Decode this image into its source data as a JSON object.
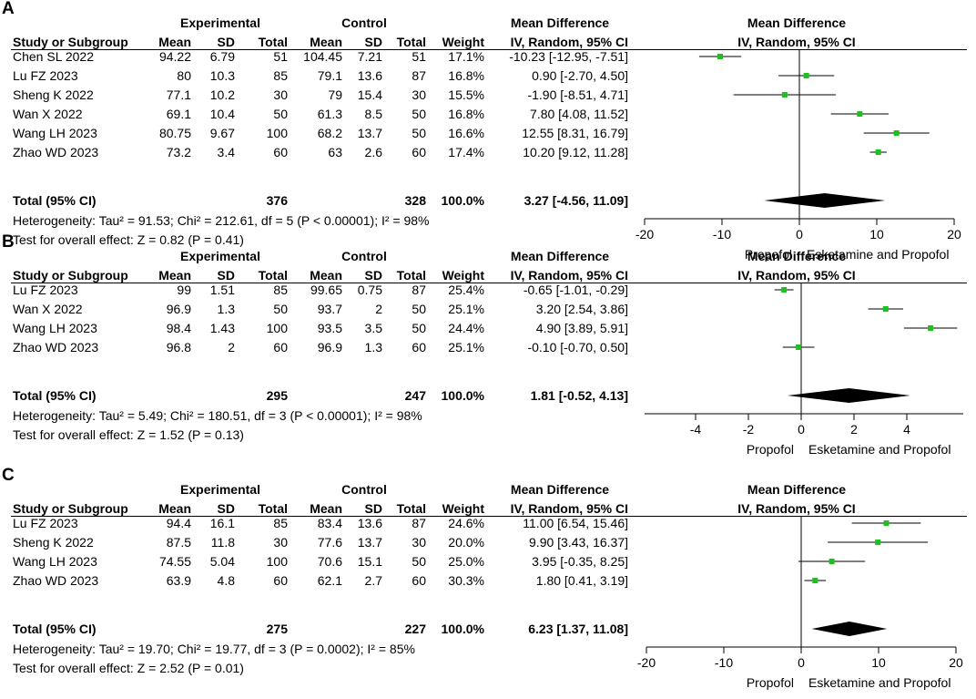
{
  "headers": {
    "experimental": "Experimental",
    "control": "Control",
    "mean_difference": "Mean Difference",
    "study": "Study or Subgroup",
    "mean": "Mean",
    "sd": "SD",
    "total": "Total",
    "weight": "Weight",
    "method": "IV, Random, 95% CI"
  },
  "chart_data": [
    {
      "type": "forest",
      "panel": "A",
      "studies": [
        {
          "name": "Chen SL 2022",
          "e_mean": "94.22",
          "e_sd": "6.79",
          "e_total": "51",
          "c_mean": "104.45",
          "c_sd": "7.21",
          "c_total": "51",
          "weight": "17.1%",
          "ci_text": "-10.23 [-12.95, -7.51]",
          "md": -10.23,
          "lo": -12.95,
          "hi": -7.51
        },
        {
          "name": "Lu FZ 2023",
          "e_mean": "80",
          "e_sd": "10.3",
          "e_total": "85",
          "c_mean": "79.1",
          "c_sd": "13.6",
          "c_total": "87",
          "weight": "16.8%",
          "ci_text": "0.90 [-2.70, 4.50]",
          "md": 0.9,
          "lo": -2.7,
          "hi": 4.5
        },
        {
          "name": "Sheng K 2022",
          "e_mean": "77.1",
          "e_sd": "10.2",
          "e_total": "30",
          "c_mean": "79",
          "c_sd": "15.4",
          "c_total": "30",
          "weight": "15.5%",
          "ci_text": "-1.90 [-8.51, 4.71]",
          "md": -1.9,
          "lo": -8.51,
          "hi": 4.71
        },
        {
          "name": "Wan X 2022",
          "e_mean": "69.1",
          "e_sd": "10.4",
          "e_total": "50",
          "c_mean": "61.3",
          "c_sd": "8.5",
          "c_total": "50",
          "weight": "16.8%",
          "ci_text": "7.80 [4.08, 11.52]",
          "md": 7.8,
          "lo": 4.08,
          "hi": 11.52
        },
        {
          "name": "Wang LH 2023",
          "e_mean": "80.75",
          "e_sd": "9.67",
          "e_total": "100",
          "c_mean": "68.2",
          "c_sd": "13.7",
          "c_total": "50",
          "weight": "16.6%",
          "ci_text": "12.55 [8.31, 16.79]",
          "md": 12.55,
          "lo": 8.31,
          "hi": 16.79
        },
        {
          "name": "Zhao WD 2023",
          "e_mean": "73.2",
          "e_sd": "3.4",
          "e_total": "60",
          "c_mean": "63",
          "c_sd": "2.6",
          "c_total": "60",
          "weight": "17.4%",
          "ci_text": "10.20 [9.12, 11.28]",
          "md": 10.2,
          "lo": 9.12,
          "hi": 11.28
        }
      ],
      "total": {
        "label": "Total (95% CI)",
        "e_total": "376",
        "c_total": "328",
        "weight": "100.0%",
        "ci_text": "3.27 [-4.56, 11.09]",
        "md": 3.27,
        "lo": -4.56,
        "hi": 11.09
      },
      "heterogeneity": "Heterogeneity: Tau² = 91.53; Chi² = 212.61, df = 5 (P < 0.00001); I² = 98%",
      "overall": "Test for overall effect: Z = 0.82 (P = 0.41)",
      "xlim": [
        -20,
        20
      ],
      "ticks": [
        -20,
        -10,
        0,
        10,
        20
      ],
      "tick_labels": [
        "-20",
        "-10",
        "0",
        "10",
        "20"
      ],
      "favours_left": "Propofol",
      "favours_right": "Esketamine and Propofol"
    },
    {
      "type": "forest",
      "panel": "B",
      "studies": [
        {
          "name": "Lu FZ 2023",
          "e_mean": "99",
          "e_sd": "1.51",
          "e_total": "85",
          "c_mean": "99.65",
          "c_sd": "0.75",
          "c_total": "87",
          "weight": "25.4%",
          "ci_text": "-0.65 [-1.01, -0.29]",
          "md": -0.65,
          "lo": -1.01,
          "hi": -0.29
        },
        {
          "name": "Wan X 2022",
          "e_mean": "96.9",
          "e_sd": "1.3",
          "e_total": "50",
          "c_mean": "93.7",
          "c_sd": "2",
          "c_total": "50",
          "weight": "25.1%",
          "ci_text": "3.20 [2.54, 3.86]",
          "md": 3.2,
          "lo": 2.54,
          "hi": 3.86
        },
        {
          "name": "Wang LH 2023",
          "e_mean": "98.4",
          "e_sd": "1.43",
          "e_total": "100",
          "c_mean": "93.5",
          "c_sd": "3.5",
          "c_total": "50",
          "weight": "24.4%",
          "ci_text": "4.90 [3.89, 5.91]",
          "md": 4.9,
          "lo": 3.89,
          "hi": 5.91
        },
        {
          "name": "Zhao WD 2023",
          "e_mean": "96.8",
          "e_sd": "2",
          "e_total": "60",
          "c_mean": "96.9",
          "c_sd": "1.3",
          "c_total": "60",
          "weight": "25.1%",
          "ci_text": "-0.10 [-0.70, 0.50]",
          "md": -0.1,
          "lo": -0.7,
          "hi": 0.5
        }
      ],
      "total": {
        "label": "Total (95% CI)",
        "e_total": "295",
        "c_total": "247",
        "weight": "100.0%",
        "ci_text": "1.81 [-0.52, 4.13]",
        "md": 1.81,
        "lo": -0.52,
        "hi": 4.13
      },
      "heterogeneity": "Heterogeneity: Tau² = 5.49; Chi² = 180.51, df = 3 (P < 0.00001); I² = 98%",
      "overall": "Test for overall effect: Z = 1.52 (P = 0.13)",
      "xlim": [
        -6,
        6
      ],
      "ticks": [
        -4,
        -2,
        0,
        2,
        4
      ],
      "tick_labels": [
        "-4",
        "-2",
        "0",
        "2",
        "4"
      ],
      "favours_left": "Propofol",
      "favours_right": "Esketamine and Propofol"
    },
    {
      "type": "forest",
      "panel": "C",
      "studies": [
        {
          "name": "Lu FZ 2023",
          "e_mean": "94.4",
          "e_sd": "16.1",
          "e_total": "85",
          "c_mean": "83.4",
          "c_sd": "13.6",
          "c_total": "87",
          "weight": "24.6%",
          "ci_text": "11.00 [6.54, 15.46]",
          "md": 11.0,
          "lo": 6.54,
          "hi": 15.46
        },
        {
          "name": "Sheng K 2022",
          "e_mean": "87.5",
          "e_sd": "11.8",
          "e_total": "30",
          "c_mean": "77.6",
          "c_sd": "13.7",
          "c_total": "30",
          "weight": "20.0%",
          "ci_text": "9.90 [3.43, 16.37]",
          "md": 9.9,
          "lo": 3.43,
          "hi": 16.37
        },
        {
          "name": "Wang LH 2023",
          "e_mean": "74.55",
          "e_sd": "5.04",
          "e_total": "100",
          "c_mean": "70.6",
          "c_sd": "15.1",
          "c_total": "50",
          "weight": "25.0%",
          "ci_text": "3.95 [-0.35, 8.25]",
          "md": 3.95,
          "lo": -0.35,
          "hi": 8.25
        },
        {
          "name": "Zhao WD 2023",
          "e_mean": "63.9",
          "e_sd": "4.8",
          "e_total": "60",
          "c_mean": "62.1",
          "c_sd": "2.7",
          "c_total": "60",
          "weight": "30.3%",
          "ci_text": "1.80 [0.41, 3.19]",
          "md": 1.8,
          "lo": 0.41,
          "hi": 3.19
        }
      ],
      "total": {
        "label": "Total (95% CI)",
        "e_total": "275",
        "c_total": "227",
        "weight": "100.0%",
        "ci_text": "6.23 [1.37, 11.08]",
        "md": 6.23,
        "lo": 1.37,
        "hi": 11.08
      },
      "heterogeneity": "Heterogeneity: Tau² = 19.70; Chi² = 19.77, df = 3 (P = 0.0002); I² = 85%",
      "overall": "Test for overall effect: Z = 2.52 (P = 0.01)",
      "xlim": [
        -20,
        20
      ],
      "ticks": [
        -20,
        -10,
        0,
        10,
        20
      ],
      "tick_labels": [
        "-20",
        "-10",
        "0",
        "10",
        "20"
      ],
      "favours_left": "Propofol",
      "favours_right": "Esketamine and Propofol"
    }
  ]
}
